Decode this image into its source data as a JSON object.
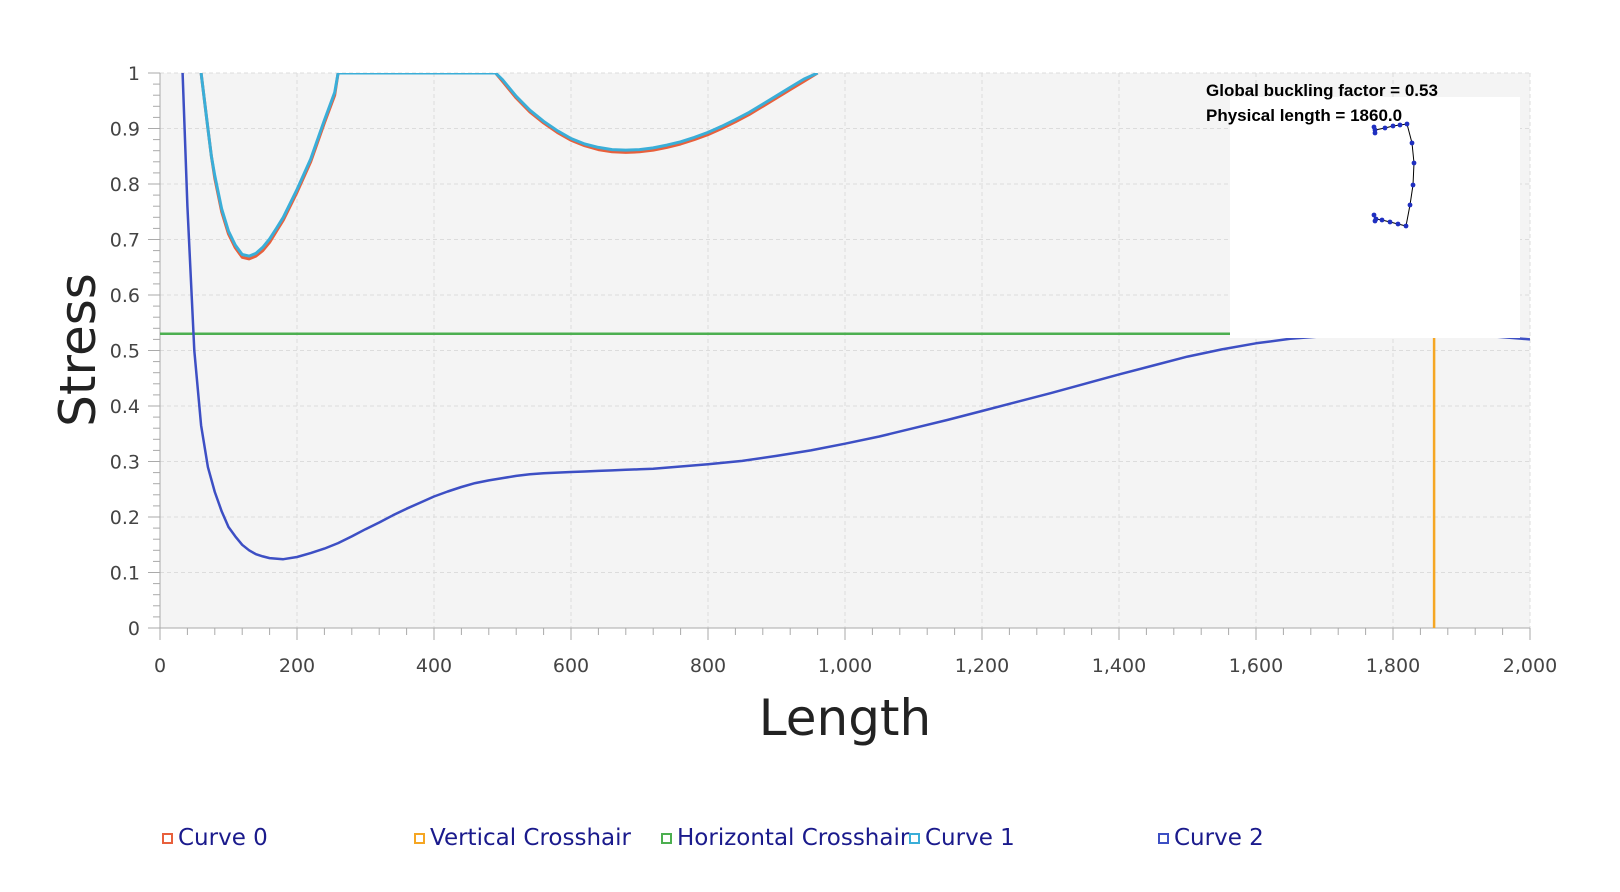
{
  "chart_data": {
    "type": "line",
    "title": "",
    "xlabel": "Length",
    "ylabel": "Stress",
    "xlim": [
      0,
      2000
    ],
    "ylim": [
      0,
      1
    ],
    "x_ticks": [
      "0",
      "200",
      "400",
      "600",
      "800",
      "1,000",
      "1,200",
      "1,400",
      "1,600",
      "1,800",
      "2,000"
    ],
    "y_ticks": [
      "0",
      "0.1",
      "0.2",
      "0.3",
      "0.4",
      "0.5",
      "0.6",
      "0.7",
      "0.8",
      "0.9",
      "1"
    ],
    "grid": true,
    "legend_position": "bottom",
    "series": [
      {
        "name": "Curve 0",
        "color": "#e8603c",
        "x": [
          60,
          65,
          70,
          75,
          80,
          90,
          100,
          110,
          120,
          130,
          140,
          150,
          160,
          170,
          180,
          200,
          220,
          240,
          255,
          260,
          490,
          500,
          520,
          540,
          560,
          580,
          600,
          620,
          640,
          660,
          680,
          700,
          720,
          740,
          760,
          780,
          800,
          820,
          840,
          860,
          880,
          900,
          920,
          940,
          960
        ],
        "y": [
          1.0,
          0.95,
          0.9,
          0.85,
          0.81,
          0.75,
          0.71,
          0.685,
          0.668,
          0.665,
          0.67,
          0.68,
          0.695,
          0.715,
          0.735,
          0.785,
          0.84,
          0.91,
          0.96,
          1.0,
          1.0,
          0.985,
          0.955,
          0.93,
          0.91,
          0.893,
          0.879,
          0.869,
          0.862,
          0.858,
          0.857,
          0.858,
          0.861,
          0.866,
          0.872,
          0.88,
          0.889,
          0.9,
          0.912,
          0.925,
          0.94,
          0.955,
          0.97,
          0.985,
          1.0
        ]
      },
      {
        "name": "Vertical Crosshair",
        "color": "#f5a623",
        "x": [
          1860,
          1860
        ],
        "y": [
          0,
          0.53
        ]
      },
      {
        "name": "Horizontal Crosshair",
        "color": "#4caf50",
        "x": [
          0,
          1860
        ],
        "y": [
          0.53,
          0.53
        ]
      },
      {
        "name": "Curve 1",
        "color": "#3aaed8",
        "x": [
          60,
          65,
          70,
          75,
          80,
          90,
          100,
          110,
          120,
          130,
          140,
          150,
          160,
          170,
          180,
          200,
          220,
          240,
          255,
          260,
          490,
          500,
          520,
          540,
          560,
          580,
          600,
          620,
          640,
          660,
          680,
          700,
          720,
          740,
          760,
          780,
          800,
          820,
          840,
          860,
          880,
          900,
          920,
          940,
          960
        ],
        "y": [
          1.0,
          0.95,
          0.9,
          0.85,
          0.815,
          0.755,
          0.715,
          0.69,
          0.673,
          0.67,
          0.675,
          0.686,
          0.701,
          0.72,
          0.74,
          0.79,
          0.845,
          0.915,
          0.965,
          1.0,
          1.0,
          0.988,
          0.958,
          0.933,
          0.913,
          0.896,
          0.882,
          0.872,
          0.866,
          0.862,
          0.861,
          0.862,
          0.865,
          0.87,
          0.876,
          0.884,
          0.893,
          0.904,
          0.916,
          0.929,
          0.944,
          0.959,
          0.974,
          0.989,
          1.0
        ]
      },
      {
        "name": "Curve 2",
        "color": "#3d4fc4",
        "x": [
          33,
          40,
          50,
          60,
          70,
          80,
          90,
          100,
          110,
          120,
          130,
          140,
          150,
          160,
          180,
          200,
          220,
          240,
          260,
          280,
          300,
          320,
          340,
          360,
          380,
          400,
          420,
          440,
          460,
          480,
          500,
          520,
          540,
          560,
          580,
          600,
          620,
          640,
          660,
          680,
          700,
          720,
          740,
          760,
          780,
          800,
          850,
          900,
          950,
          1000,
          1050,
          1100,
          1150,
          1200,
          1250,
          1300,
          1350,
          1400,
          1450,
          1500,
          1550,
          1600,
          1650,
          1700,
          1750,
          1800,
          1850,
          1900,
          1950,
          2000
        ],
        "y": [
          1.0,
          0.76,
          0.5,
          0.365,
          0.29,
          0.245,
          0.21,
          0.182,
          0.165,
          0.15,
          0.14,
          0.133,
          0.129,
          0.126,
          0.124,
          0.128,
          0.135,
          0.143,
          0.153,
          0.165,
          0.178,
          0.19,
          0.203,
          0.215,
          0.226,
          0.237,
          0.246,
          0.254,
          0.261,
          0.266,
          0.27,
          0.274,
          0.277,
          0.279,
          0.28,
          0.281,
          0.282,
          0.283,
          0.284,
          0.285,
          0.286,
          0.287,
          0.289,
          0.291,
          0.293,
          0.295,
          0.301,
          0.31,
          0.32,
          0.332,
          0.345,
          0.36,
          0.375,
          0.391,
          0.407,
          0.423,
          0.44,
          0.457,
          0.473,
          0.489,
          0.502,
          0.513,
          0.521,
          0.526,
          0.528,
          0.529,
          0.528,
          0.527,
          0.525,
          0.52
        ]
      }
    ],
    "inset": {
      "buckling_label": "Global buckling factor = 0.53",
      "length_label": "Physical length = 1860.0"
    }
  },
  "legend": {
    "items": [
      "Curve 0",
      "Vertical Crosshair",
      "Horizontal Crosshair",
      "Curve 1",
      "Curve 2"
    ],
    "text_color": "#1a1a8c"
  }
}
